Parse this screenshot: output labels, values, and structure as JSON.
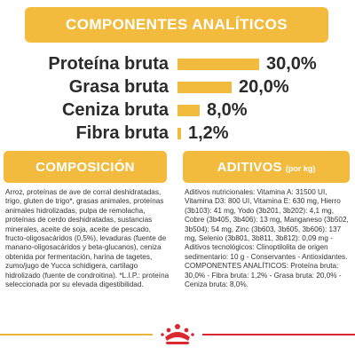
{
  "header": {
    "title": "COMPONENTES ANALÍTICOS"
  },
  "analysis": {
    "max_percent": 30,
    "rows": [
      {
        "label": "Proteína bruta",
        "value": "30,0%",
        "percent": 30.0
      },
      {
        "label": "Grasa bruta",
        "value": "20,0%",
        "percent": 20.0
      },
      {
        "label": "Ceniza bruta",
        "value": "8,0%",
        "percent": 8.0
      },
      {
        "label": "Fibra bruta",
        "value": "1,2%",
        "percent": 1.2
      }
    ]
  },
  "composition": {
    "title": "COMPOSICIÓN",
    "text": "Arroz, proteínas de ave de corral deshidratadas, trigo, gluten de trigo*, grasas animales, proteínas animales hidrolizadas, pulpa de remolacha, proteínas de cerdo deshidratadas, sustancias minerales, aceite de soja, aceite de pescado, fructo-oligosacáridos (0,5%), levaduras (fuente de manano-oligosacáridos y beta-glucanos), ceniza obtenida por fermentación, harina de tagetes, zumo/jugo de Yucca schidigera, cartílago hidrolizado (fuente de condroitina). *L.I.P.: proteína seleccionada por su elevada digestibilidad."
  },
  "additives": {
    "title": "ADITIVOS",
    "subtitle": "(por kg)",
    "text": "Aditivos nutricionales: Vitamina A: 31500 UI, Vitamina D3: 800 UI, Vitamina E: 630 mg, Hierro (3b103): 41 mg, Yodo (3b201, 3b202): 4,1 mg, Cobre (3b405, 3b406): 13 mg, Manganeso (3b502, 3b504): 54 mg, Zinc (3b603, 3b605, 3b606): 137 mg, Selenio (3b801, 3b811, 3b812): 0,09 mg - Aditivos tecnológicos: Clinoptilolita de origen sedimentario: 10 g - Conservantes - Antioxidantes. COMPONENTES ANALÍTICOS: Proteína bruta: 30,0% - Fibra bruta: 1,2% - Grasa bruta: 20,0% - Ceniza bruta: 8,0%."
  },
  "colors": {
    "accent": "#f2bb3e",
    "footer_left": "#e9b53a",
    "footer_right": "#d9282f",
    "logo_red": "#d9282f"
  },
  "footer": {
    "logo_icon": "royal-canin-crown-logo"
  }
}
